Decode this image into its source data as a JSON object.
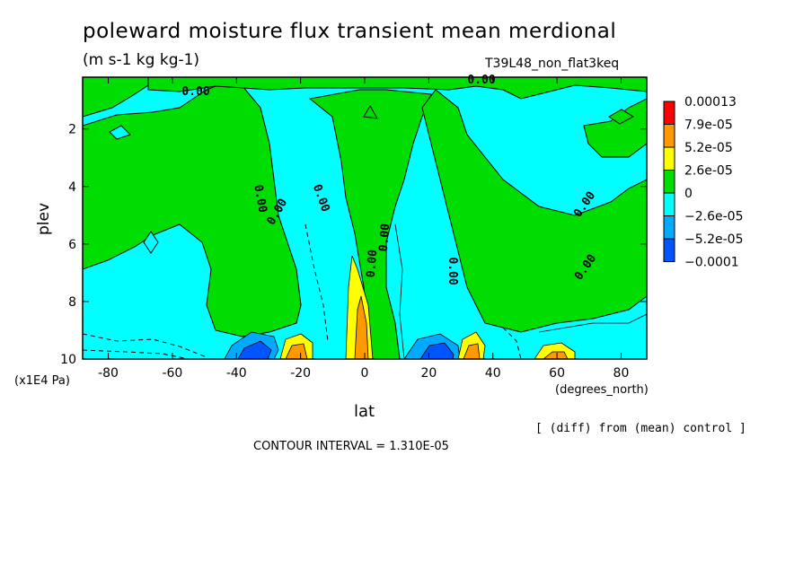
{
  "header": {
    "title": "poleward moisture flux transient mean merdional",
    "units": "(m s-1 kg kg-1)",
    "run_id": "T39L48_non_flat3keq"
  },
  "footer": {
    "diff_note": "[ (diff) from (mean) control ]",
    "contour_interval": "CONTOUR INTERVAL = 1.310E-05"
  },
  "chart_data": {
    "type": "contour",
    "xlabel": "lat",
    "xunit": "(degrees_north)",
    "ylabel": "plev",
    "yunit": "(x1E4 Pa)",
    "xlim": [
      -88,
      88
    ],
    "ylim": [
      10,
      0.2
    ],
    "x_ticks": [
      -80,
      -60,
      -40,
      -20,
      0,
      20,
      40,
      60,
      80
    ],
    "y_ticks": [
      2,
      4,
      6,
      8,
      10
    ],
    "contour_labels": [
      "0.00",
      "0.00",
      "0.00",
      "0.00",
      "0.00",
      "0.00",
      "0.00",
      "0.00",
      "0.00",
      "0.00"
    ],
    "legend": {
      "labels": [
        "0.00013",
        "7.9e-05",
        "5.2e-05",
        "2.6e-05",
        "0",
        "−2.6e-05",
        "−5.2e-05",
        "−0.0001"
      ],
      "colors": [
        "#ff0000",
        "#ff9900",
        "#ffff00",
        "#00dd00",
        "#00ffff",
        "#00aaff",
        "#0055ff"
      ]
    },
    "colors": {
      "positive_small": "#00dd00",
      "negative_small": "#00ffff",
      "positive_mid": "#ffff00",
      "positive_high": "#ff9900",
      "negative_mid": "#00aaff",
      "negative_high": "#0055ff"
    }
  }
}
